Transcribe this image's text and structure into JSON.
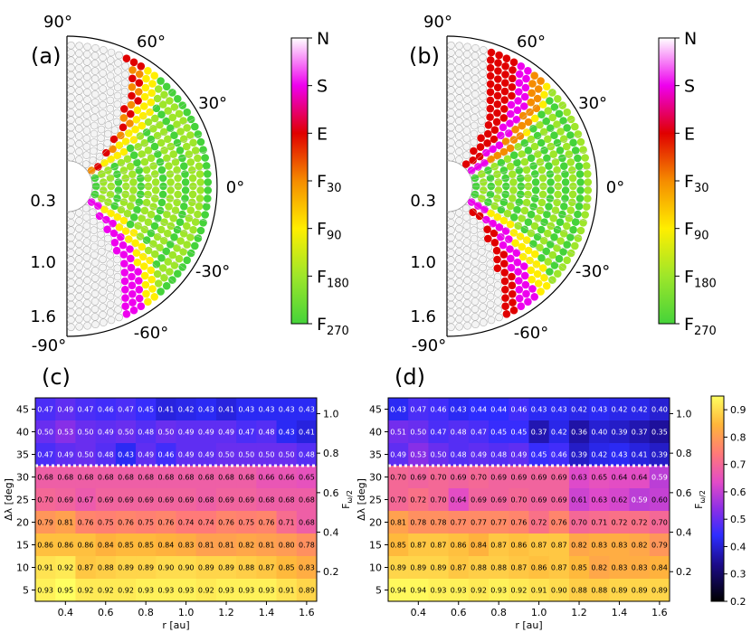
{
  "panels": [
    {
      "label": "(a)"
    },
    {
      "label": "(b)"
    },
    {
      "label": "(c)"
    },
    {
      "label": "(d)"
    }
  ],
  "colors": {
    "N": "#ffffff",
    "S": "#ee00ee",
    "E": "#e00000",
    "F30": "#f58c00",
    "F90": "#ffee00",
    "F180": "#9ee62a",
    "F270": "#45d33a",
    "none": "#e8e8e8"
  },
  "chart_data": [
    {
      "type": "scatter",
      "panel": "(a)",
      "subtype": "polar-half",
      "angle_ticks": [
        "90°",
        "60°",
        "30°",
        "0°",
        "-30°",
        "-60°",
        "-90°"
      ],
      "radial_ticks": [
        "0.3",
        "1.0",
        "1.6"
      ],
      "radial_range": [
        0.3,
        1.6
      ],
      "latitude_range": [
        -90,
        90
      ]
    },
    {
      "type": "scatter",
      "panel": "(b)",
      "subtype": "polar-half",
      "angle_ticks": [
        "90°",
        "60°",
        "30°",
        "0°",
        "-30°",
        "-60°",
        "-90°"
      ],
      "radial_ticks": [
        "0.3",
        "1.0",
        "1.6"
      ],
      "radial_range": [
        0.3,
        1.6
      ],
      "latitude_range": [
        -90,
        90
      ]
    },
    {
      "type": "heatmap",
      "panel": "(c)",
      "xlabel": "r [au]",
      "ylabel": "Δλ [deg]",
      "right_label": "F_{ω/2}",
      "x_ticks": [
        "0.4",
        "0.6",
        "0.8",
        "1.0",
        "1.2",
        "1.4",
        "1.6"
      ],
      "y_ticks": [
        "5",
        "10",
        "15",
        "20",
        "25",
        "30",
        "35",
        "40",
        "45"
      ],
      "right_ticks": [
        "0.2",
        "0.4",
        "0.6",
        "0.8",
        "1.0"
      ],
      "x": [
        0.3,
        0.4,
        0.5,
        0.6,
        0.7,
        0.8,
        0.9,
        1.0,
        1.1,
        1.2,
        1.3,
        1.4,
        1.5,
        1.6
      ],
      "y": [
        45,
        40,
        35,
        30,
        25,
        20,
        15,
        10,
        5
      ],
      "values": [
        [
          0.47,
          0.49,
          0.47,
          0.46,
          0.47,
          0.45,
          0.41,
          0.42,
          0.43,
          0.41,
          0.43,
          0.43,
          0.43,
          0.43
        ],
        [
          0.5,
          0.53,
          0.5,
          0.49,
          0.5,
          0.48,
          0.5,
          0.49,
          0.49,
          0.49,
          0.47,
          0.48,
          0.43,
          0.41
        ],
        [
          0.47,
          0.49,
          0.5,
          0.48,
          0.43,
          0.49,
          0.46,
          0.49,
          0.49,
          0.5,
          0.5,
          0.5,
          0.5,
          0.48
        ],
        [
          0.68,
          0.68,
          0.68,
          0.68,
          0.68,
          0.68,
          0.68,
          0.68,
          0.68,
          0.68,
          0.68,
          0.66,
          0.66,
          0.65
        ],
        [
          0.7,
          0.69,
          0.67,
          0.69,
          0.69,
          0.69,
          0.69,
          0.69,
          0.68,
          0.69,
          0.69,
          0.68,
          0.68,
          0.68
        ],
        [
          0.79,
          0.81,
          0.76,
          0.75,
          0.76,
          0.75,
          0.76,
          0.74,
          0.74,
          0.76,
          0.75,
          0.76,
          0.71,
          0.68
        ],
        [
          0.86,
          0.86,
          0.86,
          0.84,
          0.85,
          0.85,
          0.84,
          0.83,
          0.81,
          0.81,
          0.82,
          0.81,
          0.8,
          0.78
        ],
        [
          0.91,
          0.92,
          0.87,
          0.88,
          0.89,
          0.89,
          0.9,
          0.9,
          0.89,
          0.89,
          0.88,
          0.87,
          0.85,
          0.83
        ],
        [
          0.93,
          0.95,
          0.92,
          0.92,
          0.92,
          0.93,
          0.93,
          0.93,
          0.92,
          0.93,
          0.93,
          0.93,
          0.91,
          0.89
        ]
      ]
    },
    {
      "type": "heatmap",
      "panel": "(d)",
      "xlabel": "r [au]",
      "ylabel": "Δλ [deg]",
      "right_label": "F_{ω/2}",
      "x_ticks": [
        "0.4",
        "0.6",
        "0.8",
        "1.0",
        "1.2",
        "1.4",
        "1.6"
      ],
      "y_ticks": [
        "5",
        "10",
        "15",
        "20",
        "25",
        "30",
        "35",
        "40",
        "45"
      ],
      "right_ticks": [
        "0.2",
        "0.4",
        "0.6",
        "0.8",
        "1.0"
      ],
      "x": [
        0.3,
        0.4,
        0.5,
        0.6,
        0.7,
        0.8,
        0.9,
        1.0,
        1.1,
        1.2,
        1.3,
        1.4,
        1.5,
        1.6
      ],
      "y": [
        45,
        40,
        35,
        30,
        25,
        20,
        15,
        10,
        5
      ],
      "values": [
        [
          0.43,
          0.47,
          0.46,
          0.43,
          0.44,
          0.44,
          0.46,
          0.43,
          0.43,
          0.42,
          0.43,
          0.42,
          0.42,
          0.4
        ],
        [
          0.51,
          0.5,
          0.47,
          0.48,
          0.47,
          0.45,
          0.45,
          0.37,
          0.42,
          0.36,
          0.4,
          0.39,
          0.37,
          0.35
        ],
        [
          0.49,
          0.53,
          0.5,
          0.48,
          0.49,
          0.48,
          0.49,
          0.45,
          0.46,
          0.39,
          0.42,
          0.43,
          0.41,
          0.39
        ],
        [
          0.7,
          0.69,
          0.7,
          0.69,
          0.7,
          0.69,
          0.69,
          0.69,
          0.69,
          0.63,
          0.65,
          0.64,
          0.64,
          0.59
        ],
        [
          0.7,
          0.72,
          0.7,
          0.64,
          0.69,
          0.69,
          0.7,
          0.69,
          0.69,
          0.61,
          0.63,
          0.62,
          0.59,
          0.6
        ],
        [
          0.81,
          0.78,
          0.78,
          0.77,
          0.77,
          0.77,
          0.76,
          0.72,
          0.76,
          0.7,
          0.71,
          0.72,
          0.72,
          0.7
        ],
        [
          0.85,
          0.87,
          0.87,
          0.86,
          0.84,
          0.87,
          0.86,
          0.87,
          0.87,
          0.82,
          0.83,
          0.83,
          0.82,
          0.79
        ],
        [
          0.89,
          0.89,
          0.89,
          0.87,
          0.88,
          0.88,
          0.87,
          0.86,
          0.87,
          0.85,
          0.82,
          0.83,
          0.83,
          0.84
        ],
        [
          0.94,
          0.94,
          0.93,
          0.93,
          0.92,
          0.93,
          0.92,
          0.91,
          0.9,
          0.88,
          0.88,
          0.89,
          0.89,
          0.89
        ]
      ]
    }
  ],
  "category_legend": {
    "ticks": [
      "N",
      "S",
      "E",
      "F_{30}",
      "F_{90}",
      "F_{180}",
      "F_{270}"
    ]
  },
  "value_colorbar": {
    "ticks": [
      "0.2",
      "0.3",
      "0.4",
      "0.5",
      "0.6",
      "0.7",
      "0.8",
      "0.9"
    ],
    "range": [
      0.2,
      0.95
    ]
  }
}
